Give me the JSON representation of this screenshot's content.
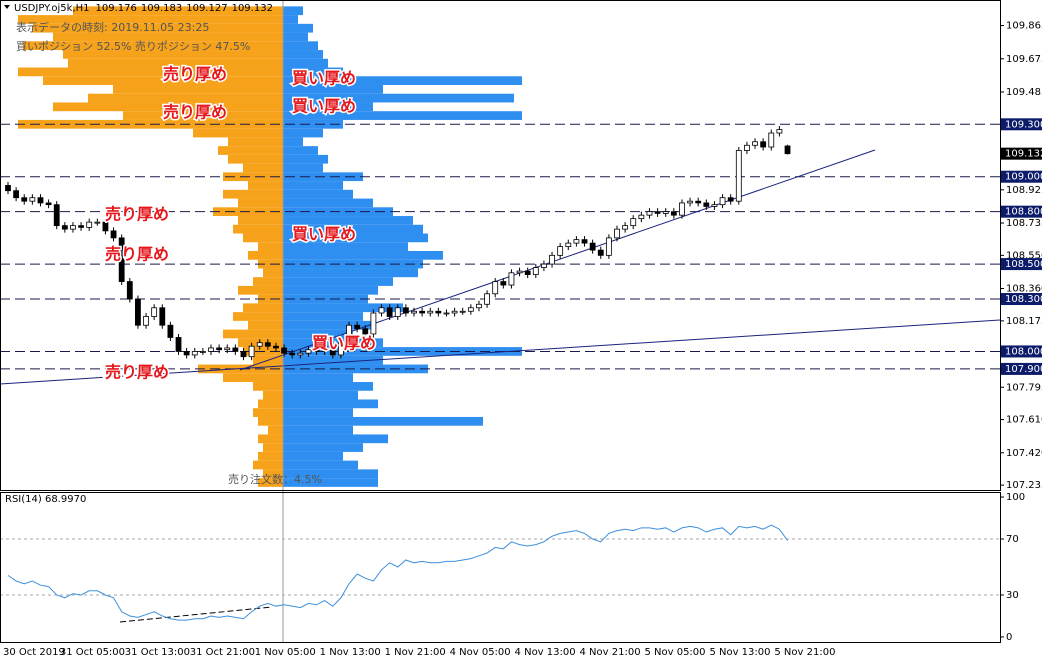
{
  "chart_data": {
    "type": "candlestick",
    "symbol": "USDJPY.oj5k,H1",
    "info_time": "表示データの時刻: 2019.11.05 23:25",
    "info_positions": "買いポジション 52.5% 売りポジション 47.5%",
    "footer": "売り注文数：4.5%",
    "categories": [
      "30 Oct 2019",
      null,
      null,
      null,
      null,
      null,
      null,
      "31 Oct 05:00",
      null,
      null,
      null,
      null,
      null,
      null,
      null,
      "31 Oct 13:00",
      null,
      null,
      null,
      null,
      null,
      null,
      null,
      "31 Oct 21:00",
      null,
      null,
      null,
      null,
      null,
      null,
      null,
      "1 Nov 05:00",
      null,
      null,
      null,
      null,
      null,
      null,
      null,
      "1 Nov 13:00",
      null,
      null,
      null,
      null,
      null,
      null,
      null,
      "1 Nov 21:00",
      null,
      null,
      null,
      null,
      null,
      null,
      null,
      "4 Nov 05:00",
      null,
      null,
      null,
      null,
      null,
      null,
      null,
      "4 Nov 13:00",
      null,
      null,
      null,
      null,
      null,
      null,
      null,
      "4 Nov 21:00",
      null,
      null,
      null,
      null,
      null,
      null,
      null,
      "5 Nov 05:00",
      null,
      null,
      null,
      null,
      null,
      null,
      null,
      "5 Nov 13:00",
      null,
      null,
      null,
      null,
      null,
      null,
      null,
      "5 Nov 21:00",
      null
    ],
    "open": [
      108.95,
      108.92,
      108.88,
      108.86,
      108.88,
      108.85,
      108.84,
      108.72,
      108.7,
      108.72,
      108.71,
      108.74,
      108.74,
      108.69,
      108.65,
      108.4,
      108.3,
      108.15,
      108.2,
      108.25,
      108.15,
      108.08,
      108.0,
      107.98,
      108.0,
      108.0,
      108.02,
      108.01,
      108.02,
      108.0,
      107.97,
      108.03,
      108.05,
      108.03,
      108.02,
      107.99,
      107.98,
      107.99,
      108.01,
      108.0,
      108.03,
      107.98,
      108.05,
      108.15,
      108.13,
      108.1,
      108.22,
      108.25,
      108.2,
      108.25,
      108.22,
      108.23,
      108.22,
      108.23,
      108.22,
      108.22,
      108.23,
      108.23,
      108.25,
      108.27,
      108.33,
      108.4,
      108.38,
      108.45,
      108.46,
      108.44,
      108.48,
      108.5,
      108.55,
      108.6,
      108.62,
      108.64,
      108.62,
      108.58,
      108.55,
      108.65,
      108.7,
      108.72,
      108.76,
      108.78,
      108.8,
      108.79,
      108.8,
      108.78,
      108.85,
      108.86,
      108.85,
      108.83,
      108.84,
      108.88,
      108.86,
      109.15,
      109.18,
      109.2,
      109.17,
      109.25,
      109.176
    ],
    "high": [
      108.97,
      108.94,
      108.9,
      108.9,
      108.9,
      108.87,
      108.86,
      108.74,
      108.74,
      108.74,
      108.76,
      108.76,
      108.76,
      108.71,
      108.67,
      108.42,
      108.32,
      108.22,
      108.27,
      108.27,
      108.17,
      108.1,
      108.02,
      108.02,
      108.02,
      108.04,
      108.04,
      108.04,
      108.04,
      108.02,
      108.05,
      108.07,
      108.07,
      108.05,
      108.04,
      108.01,
      108.01,
      108.03,
      108.03,
      108.05,
      108.05,
      108.07,
      108.17,
      108.17,
      108.15,
      108.24,
      108.27,
      108.27,
      108.27,
      108.27,
      108.25,
      108.25,
      108.25,
      108.25,
      108.24,
      108.25,
      108.25,
      108.27,
      108.29,
      108.35,
      108.42,
      108.42,
      108.47,
      108.48,
      108.48,
      108.5,
      108.52,
      108.57,
      108.62,
      108.64,
      108.66,
      108.66,
      108.64,
      108.6,
      108.67,
      108.72,
      108.74,
      108.78,
      108.8,
      108.82,
      108.82,
      108.82,
      108.82,
      108.87,
      108.88,
      108.88,
      108.87,
      108.86,
      108.9,
      108.9,
      109.17,
      109.2,
      109.22,
      109.22,
      109.27,
      109.29,
      109.183
    ],
    "low": [
      108.9,
      108.86,
      108.84,
      108.84,
      108.83,
      108.82,
      108.7,
      108.68,
      108.68,
      108.69,
      108.69,
      108.72,
      108.67,
      108.63,
      108.38,
      108.28,
      108.13,
      108.13,
      108.18,
      108.13,
      108.06,
      107.98,
      107.96,
      107.96,
      107.98,
      107.98,
      107.99,
      107.99,
      107.98,
      107.95,
      107.95,
      108.01,
      108.01,
      108.0,
      107.97,
      107.96,
      107.96,
      107.97,
      107.98,
      107.98,
      107.96,
      107.96,
      108.03,
      108.11,
      108.08,
      108.08,
      108.2,
      108.18,
      108.18,
      108.2,
      108.2,
      108.2,
      108.2,
      108.2,
      108.2,
      108.2,
      108.21,
      108.21,
      108.23,
      108.25,
      108.31,
      108.36,
      108.36,
      108.43,
      108.42,
      108.42,
      108.46,
      108.48,
      108.53,
      108.58,
      108.6,
      108.6,
      108.56,
      108.53,
      108.53,
      108.63,
      108.68,
      108.7,
      108.74,
      108.76,
      108.77,
      108.77,
      108.76,
      108.76,
      108.83,
      108.83,
      108.81,
      108.81,
      108.82,
      108.84,
      108.84,
      109.13,
      109.16,
      109.15,
      109.15,
      109.23,
      109.127
    ],
    "close": [
      108.92,
      108.88,
      108.86,
      108.88,
      108.85,
      108.84,
      108.72,
      108.7,
      108.72,
      108.71,
      108.74,
      108.74,
      108.69,
      108.65,
      108.4,
      108.3,
      108.15,
      108.2,
      108.25,
      108.15,
      108.08,
      108.0,
      107.98,
      108.0,
      108.0,
      108.02,
      108.01,
      108.02,
      108.0,
      107.97,
      108.03,
      108.05,
      108.03,
      108.02,
      107.99,
      107.98,
      107.99,
      108.01,
      108.0,
      108.03,
      107.98,
      108.05,
      108.15,
      108.13,
      108.1,
      108.22,
      108.25,
      108.2,
      108.25,
      108.22,
      108.23,
      108.22,
      108.23,
      108.22,
      108.22,
      108.23,
      108.23,
      108.25,
      108.27,
      108.33,
      108.4,
      108.38,
      108.45,
      108.46,
      108.44,
      108.48,
      108.5,
      108.55,
      108.6,
      108.62,
      108.64,
      108.62,
      108.58,
      108.55,
      108.65,
      108.7,
      108.72,
      108.76,
      108.78,
      108.8,
      108.79,
      108.8,
      108.78,
      108.85,
      108.86,
      108.85,
      108.83,
      108.84,
      108.88,
      108.86,
      109.15,
      109.18,
      109.2,
      109.17,
      109.25,
      109.27,
      109.132
    ],
    "ylim": [
      107.207,
      110.0
    ],
    "yticks": [
      109.865,
      109.675,
      109.485,
      108.925,
      108.735,
      {
        "value": 108.55,
        "label": "108.550"
      },
      {
        "value": 108.36,
        "label": "108.360"
      },
      108.175,
      107.795,
      {
        "value": 107.61,
        "label": "107.610"
      },
      {
        "value": 107.42,
        "label": "107.420"
      },
      107.235
    ],
    "levels": [
      {
        "value": 109.3,
        "label": "109.300"
      },
      {
        "value": 109.0,
        "label": "109.000"
      },
      {
        "value": 108.8,
        "label": "108.800"
      },
      {
        "value": 108.5,
        "label": "108.500"
      },
      {
        "value": 108.3,
        "label": "108.300"
      },
      {
        "value": 108.0,
        "label": "108.000"
      },
      {
        "value": 107.9,
        "label": "107.900"
      }
    ],
    "order_book": {
      "sell_color": "#f7a21b",
      "buy_color": "#2e8ff0",
      "prices": [
        109.95,
        109.9,
        109.85,
        109.8,
        109.75,
        109.7,
        109.65,
        109.6,
        109.55,
        109.5,
        109.45,
        109.4,
        109.35,
        109.3,
        109.25,
        109.2,
        109.15,
        109.1,
        109.05,
        109.0,
        108.95,
        108.9,
        108.85,
        108.8,
        108.75,
        108.7,
        108.65,
        108.6,
        108.55,
        108.5,
        108.45,
        108.4,
        108.35,
        108.3,
        108.25,
        108.2,
        108.15,
        108.1,
        108.05,
        108.0,
        107.95,
        107.9,
        107.85,
        107.8,
        107.75,
        107.7,
        107.65,
        107.6,
        107.55,
        107.5,
        107.45,
        107.4,
        107.35,
        107.3,
        107.25
      ],
      "sell": [
        210,
        265,
        250,
        230,
        260,
        220,
        215,
        265,
        240,
        170,
        195,
        230,
        160,
        265,
        90,
        55,
        65,
        55,
        40,
        60,
        35,
        60,
        45,
        70,
        45,
        50,
        40,
        25,
        35,
        25,
        20,
        30,
        45,
        25,
        40,
        50,
        35,
        60,
        45,
        40,
        30,
        85,
        60,
        30,
        20,
        25,
        30,
        25,
        15,
        25,
        20,
        25,
        30,
        20,
        25
      ],
      "buy": [
        20,
        15,
        30,
        25,
        35,
        40,
        45,
        60,
        239,
        100,
        231,
        90,
        239,
        60,
        40,
        20,
        35,
        45,
        40,
        80,
        60,
        70,
        90,
        110,
        130,
        140,
        145,
        125,
        160,
        140,
        135,
        110,
        95,
        85,
        120,
        80,
        90,
        70,
        100,
        239,
        100,
        145,
        70,
        90,
        75,
        95,
        70,
        200,
        70,
        105,
        80,
        60,
        75,
        95,
        95
      ]
    },
    "annotations": [
      "売り厚め",
      "売り厚め",
      "売り厚め",
      "売り厚め",
      "売り厚め",
      "買い厚め",
      "買い厚め",
      "買い厚め",
      "買い厚め"
    ],
    "rsi": {
      "title": "RSI(14) 68.9970",
      "color": "#3d8fdc",
      "ylim": [
        -3.6,
        103.6
      ],
      "yticks": [
        0,
        30,
        70,
        100
      ],
      "values": [
        44,
        40,
        38,
        40,
        37,
        36,
        30,
        28,
        31,
        30,
        33,
        33,
        30,
        28,
        18,
        15,
        14,
        16,
        18,
        15,
        13,
        12,
        12,
        13,
        13,
        15,
        14,
        15,
        14,
        13,
        18,
        22,
        24,
        22,
        23,
        22,
        21,
        24,
        23,
        26,
        22,
        28,
        38,
        45,
        42,
        40,
        48,
        53,
        50,
        55,
        53,
        54,
        53,
        53,
        54,
        54,
        55,
        56,
        58,
        60,
        64,
        63,
        68,
        66,
        65,
        66,
        68,
        72,
        74,
        75,
        76,
        74,
        70,
        68,
        74,
        76,
        77,
        76,
        78,
        78,
        77,
        78,
        75,
        78,
        79,
        78,
        75,
        77,
        78,
        73,
        79,
        78,
        79,
        77,
        80,
        77,
        68.997
      ]
    }
  }
}
